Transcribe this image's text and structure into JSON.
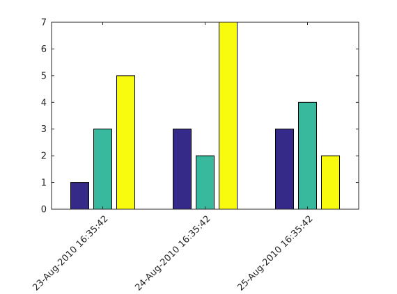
{
  "chart_data": {
    "type": "bar",
    "categories": [
      "23-Aug-2010 16:35:42",
      "24-Aug-2010 16:35:42",
      "25-Aug-2010 16:35:42"
    ],
    "series": [
      {
        "values": [
          1,
          3,
          3
        ],
        "color": "#352a87"
      },
      {
        "values": [
          3,
          2,
          4
        ],
        "color": "#38b99e"
      },
      {
        "values": [
          5,
          7,
          2
        ],
        "color": "#f9fb0e"
      }
    ],
    "ylim": [
      0,
      7
    ],
    "yticks": [
      "0",
      "1",
      "2",
      "3",
      "4",
      "5",
      "6",
      "7"
    ],
    "title": "",
    "xlabel": "",
    "ylabel": "",
    "grid": false,
    "legend": "none"
  }
}
